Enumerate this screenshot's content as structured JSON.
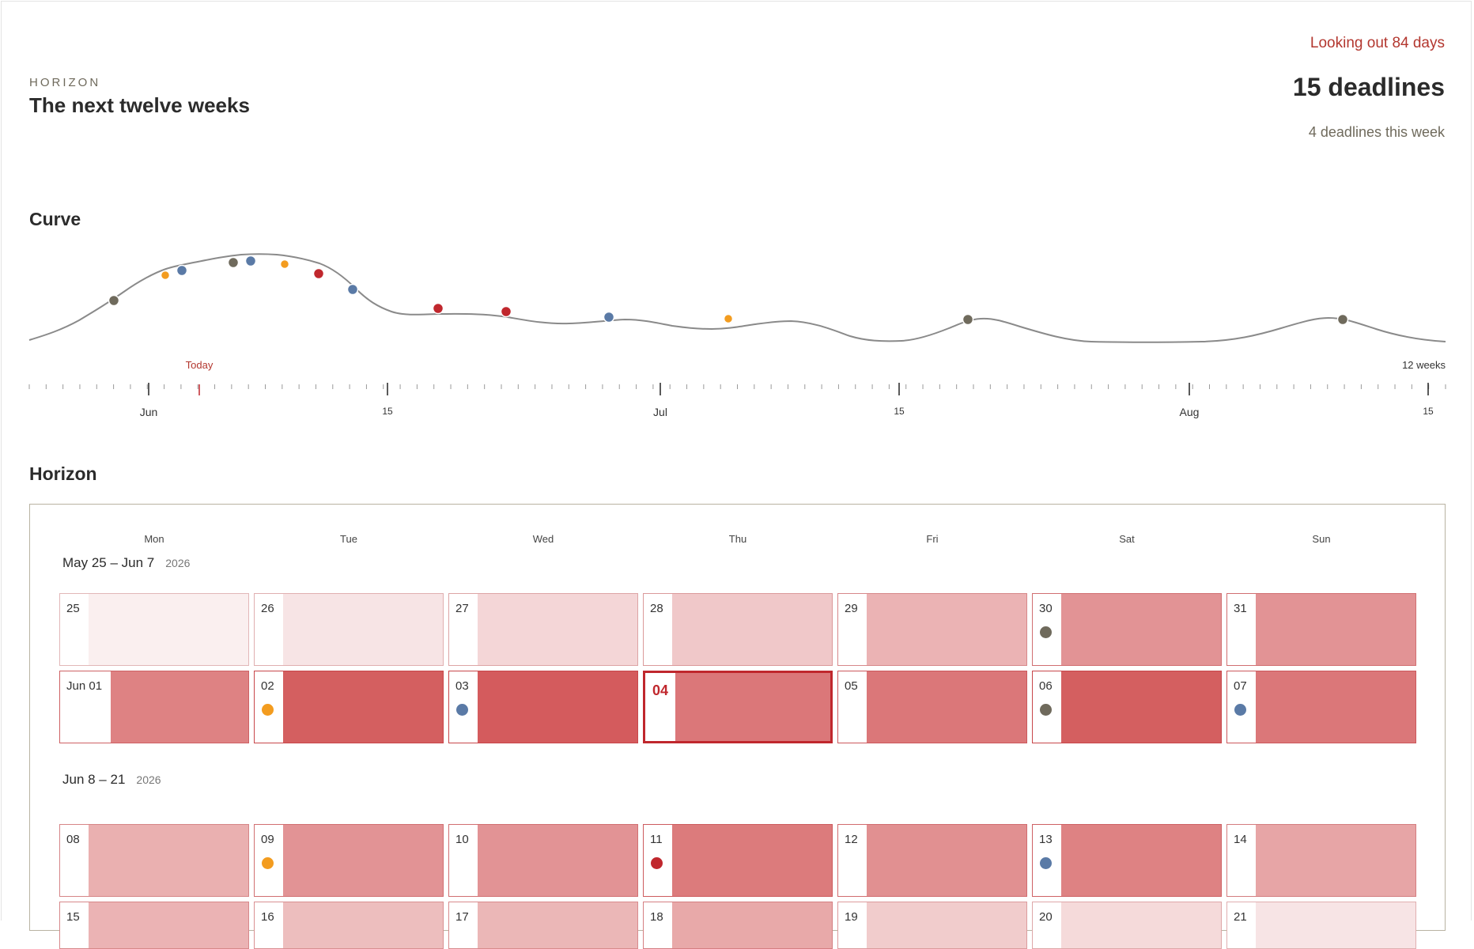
{
  "header": {
    "eyebrow": "HORIZON",
    "title": "The next twelve weeks",
    "range_label": "Looking out 84 days",
    "total_count": "15 deadlines",
    "this_week": "4 deadlines this week"
  },
  "curve": {
    "title": "Curve",
    "today_label": "Today",
    "end_label": "12 weeks",
    "month_labels": [
      "Jun",
      "15",
      "Jul",
      "15",
      "Aug",
      "15"
    ]
  },
  "colors": {
    "accent": "#c0272d",
    "gray": "#6f6a5c",
    "orange": "#f39c1f",
    "blue": "#5a7aa6",
    "red": "#c0272d",
    "curve_line": "#8a8a8a"
  },
  "horizon": {
    "title": "Horizon",
    "weekdays": [
      "Mon",
      "Tue",
      "Wed",
      "Thu",
      "Fri",
      "Sat",
      "Sun"
    ],
    "weeks": [
      {
        "range": "May 25 – Jun 7",
        "year": "2026",
        "rows": [
          [
            {
              "label": "25",
              "intensity": 0.04,
              "dot": null
            },
            {
              "label": "26",
              "intensity": 0.1,
              "dot": null
            },
            {
              "label": "27",
              "intensity": 0.18,
              "dot": null
            },
            {
              "label": "28",
              "intensity": 0.26,
              "dot": null
            },
            {
              "label": "29",
              "intensity": 0.38,
              "dot": null
            },
            {
              "label": "30",
              "intensity": 0.56,
              "dot": "gray"
            },
            {
              "label": "31",
              "intensity": 0.56,
              "dot": null
            }
          ],
          [
            {
              "label": "Jun 01",
              "intensity": 0.66,
              "dot": null
            },
            {
              "label": "02",
              "intensity": 0.86,
              "dot": "orange"
            },
            {
              "label": "03",
              "intensity": 0.88,
              "dot": "blue"
            },
            {
              "label": "04",
              "intensity": 0.72,
              "dot": null,
              "today": true
            },
            {
              "label": "05",
              "intensity": 0.72,
              "dot": null
            },
            {
              "label": "06",
              "intensity": 0.86,
              "dot": "gray"
            },
            {
              "label": "07",
              "intensity": 0.72,
              "dot": "blue"
            }
          ]
        ]
      },
      {
        "range": "Jun 8 – 21",
        "year": "2026",
        "rows": [
          [
            {
              "label": "08",
              "intensity": 0.4,
              "dot": null
            },
            {
              "label": "09",
              "intensity": 0.56,
              "dot": "orange"
            },
            {
              "label": "10",
              "intensity": 0.56,
              "dot": null
            },
            {
              "label": "11",
              "intensity": 0.7,
              "dot": "red"
            },
            {
              "label": "12",
              "intensity": 0.58,
              "dot": null
            },
            {
              "label": "13",
              "intensity": 0.66,
              "dot": "blue"
            },
            {
              "label": "14",
              "intensity": 0.46,
              "dot": null
            }
          ],
          [
            {
              "label": "15",
              "intensity": 0.38,
              "dot": null
            },
            {
              "label": "16",
              "intensity": 0.32,
              "dot": null
            },
            {
              "label": "17",
              "intensity": 0.36,
              "dot": null
            },
            {
              "label": "18",
              "intensity": 0.44,
              "dot": null
            },
            {
              "label": "19",
              "intensity": 0.24,
              "dot": null
            },
            {
              "label": "20",
              "intensity": 0.16,
              "dot": null
            },
            {
              "label": "21",
              "intensity": 0.1,
              "dot": null
            }
          ]
        ]
      }
    ]
  }
}
